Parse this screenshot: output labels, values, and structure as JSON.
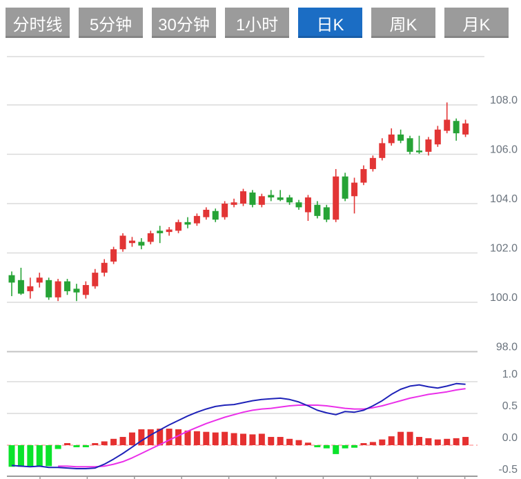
{
  "tabs": {
    "items": [
      {
        "label": "分时线",
        "active": false
      },
      {
        "label": "5分钟",
        "active": false
      },
      {
        "label": "30分钟",
        "active": false
      },
      {
        "label": "1小时",
        "active": false
      },
      {
        "label": "日K",
        "active": true
      },
      {
        "label": "周K",
        "active": false
      },
      {
        "label": "月K",
        "active": false
      }
    ]
  },
  "colors": {
    "tab_bg": "#9b9b9b",
    "tab_active_bg": "#1b6dc4",
    "tab_text": "#ffffff",
    "candle_up": "#e23535",
    "candle_down": "#26a336",
    "hist_up": "#e53030",
    "hist_down": "#0be32b",
    "dif_line": "#1e22b8",
    "dea_line": "#ea2fe9",
    "grid": "#dadada",
    "grid_dark": "#c3c3c3",
    "zero_line": "#ffa6a6",
    "axis": "#9a9a9a",
    "axis_label": "#6a737d"
  },
  "price_axis": {
    "tick_labels": [
      "108.0",
      "106.0",
      "104.0",
      "102.0",
      "100.0",
      "98.0"
    ],
    "tick_values": [
      108,
      106,
      104,
      102,
      100,
      98
    ]
  },
  "macd_axis": {
    "tick_labels": [
      "1.0",
      "0.5",
      "0.0",
      "-0.5"
    ],
    "tick_values": [
      1.0,
      0.5,
      0.0,
      -0.5
    ]
  },
  "chart_data": {
    "type": "candlestick_with_macd",
    "price_panel": {
      "ylim": [
        97.6,
        108.6
      ],
      "grid": true,
      "candles_ohlc_as_o_c_h_l": [
        [
          101.1,
          100.8,
          101.25,
          100.25
        ],
        [
          100.9,
          100.35,
          101.4,
          100.3
        ],
        [
          100.45,
          100.65,
          101.0,
          100.15
        ],
        [
          100.8,
          101.0,
          101.2,
          100.6
        ],
        [
          100.9,
          100.2,
          101.0,
          100.1
        ],
        [
          100.2,
          100.85,
          100.95,
          100.05
        ],
        [
          100.85,
          100.45,
          100.95,
          100.3
        ],
        [
          100.55,
          100.4,
          100.75,
          100.05
        ],
        [
          100.3,
          100.7,
          100.85,
          100.15
        ],
        [
          100.65,
          101.2,
          101.35,
          100.55
        ],
        [
          101.2,
          101.6,
          101.75,
          101.05
        ],
        [
          101.65,
          102.15,
          102.25,
          101.55
        ],
        [
          102.15,
          102.7,
          102.8,
          102.05
        ],
        [
          102.4,
          102.5,
          102.65,
          102.25
        ],
        [
          102.45,
          102.3,
          102.6,
          102.15
        ],
        [
          102.45,
          102.8,
          102.9,
          102.35
        ],
        [
          102.9,
          102.8,
          103.1,
          102.4
        ],
        [
          102.85,
          102.95,
          103.05,
          102.7
        ],
        [
          102.9,
          103.25,
          103.35,
          102.8
        ],
        [
          103.25,
          103.15,
          103.45,
          103.0
        ],
        [
          103.2,
          103.5,
          103.6,
          103.1
        ],
        [
          103.45,
          103.75,
          103.85,
          103.35
        ],
        [
          103.7,
          103.35,
          103.8,
          103.25
        ],
        [
          103.45,
          104.0,
          104.1,
          103.35
        ],
        [
          103.95,
          104.05,
          104.2,
          103.85
        ],
        [
          104.0,
          104.5,
          104.6,
          103.9
        ],
        [
          104.45,
          103.95,
          104.55,
          103.85
        ],
        [
          103.95,
          104.3,
          104.4,
          103.85
        ],
        [
          104.35,
          104.25,
          104.55,
          104.1
        ],
        [
          104.25,
          104.15,
          104.55,
          104.1
        ],
        [
          104.25,
          104.05,
          104.35,
          103.95
        ],
        [
          104.05,
          103.85,
          104.15,
          103.75
        ],
        [
          103.65,
          104.25,
          104.35,
          103.3
        ],
        [
          103.95,
          103.5,
          104.1,
          103.4
        ],
        [
          103.85,
          103.35,
          103.95,
          103.25
        ],
        [
          103.35,
          105.1,
          105.4,
          103.25
        ],
        [
          105.1,
          104.2,
          105.25,
          104.1
        ],
        [
          104.3,
          104.85,
          105.05,
          103.6
        ],
        [
          104.85,
          105.4,
          105.55,
          104.75
        ],
        [
          105.4,
          105.85,
          105.95,
          105.3
        ],
        [
          105.85,
          106.45,
          106.65,
          105.75
        ],
        [
          106.45,
          106.8,
          107.05,
          106.35
        ],
        [
          106.8,
          106.55,
          107.0,
          106.45
        ],
        [
          106.65,
          106.1,
          106.75,
          106.0
        ],
        [
          106.15,
          106.08,
          106.75,
          106.02
        ],
        [
          106.1,
          106.6,
          106.7,
          105.95
        ],
        [
          106.4,
          107.0,
          107.15,
          106.3
        ],
        [
          106.95,
          107.4,
          108.1,
          106.85
        ],
        [
          107.35,
          106.85,
          107.45,
          106.55
        ],
        [
          106.8,
          107.25,
          107.4,
          106.7
        ]
      ]
    },
    "macd_panel": {
      "ylim": [
        -0.55,
        1.05
      ],
      "series": [
        {
          "name": "DIF",
          "style": "line",
          "values": [
            -0.32,
            -0.33,
            -0.34,
            -0.33,
            -0.35,
            -0.35,
            -0.36,
            -0.37,
            -0.37,
            -0.36,
            -0.3,
            -0.22,
            -0.13,
            -0.03,
            0.07,
            0.16,
            0.24,
            0.32,
            0.39,
            0.46,
            0.52,
            0.57,
            0.61,
            0.63,
            0.64,
            0.67,
            0.7,
            0.72,
            0.73,
            0.74,
            0.72,
            0.68,
            0.62,
            0.55,
            0.51,
            0.48,
            0.53,
            0.52,
            0.55,
            0.62,
            0.7,
            0.8,
            0.88,
            0.93,
            0.95,
            0.92,
            0.9,
            0.93,
            0.97,
            0.96
          ]
        },
        {
          "name": "DEA",
          "style": "line",
          "values": [
            null,
            null,
            null,
            null,
            null,
            -0.33,
            -0.33,
            -0.34,
            -0.34,
            -0.34,
            -0.33,
            -0.3,
            -0.26,
            -0.2,
            -0.13,
            -0.06,
            0.01,
            0.08,
            0.15,
            0.22,
            0.28,
            0.34,
            0.39,
            0.44,
            0.48,
            0.52,
            0.55,
            0.57,
            0.58,
            0.6,
            0.62,
            0.63,
            0.63,
            0.63,
            0.62,
            0.6,
            0.58,
            0.57,
            0.57,
            0.59,
            0.62,
            0.66,
            0.7,
            0.74,
            0.77,
            0.8,
            0.82,
            0.84,
            0.87,
            0.89
          ]
        },
        {
          "name": "MACD",
          "style": "histogram",
          "values": [
            -0.34,
            -0.34,
            -0.33,
            -0.34,
            -0.33,
            -0.06,
            0.0,
            -0.02,
            -0.02,
            0.02,
            0.06,
            0.1,
            0.13,
            0.2,
            0.25,
            0.25,
            0.26,
            0.26,
            0.25,
            0.23,
            0.22,
            0.21,
            0.2,
            0.21,
            0.19,
            0.18,
            0.17,
            0.18,
            0.13,
            0.13,
            0.1,
            0.08,
            0.04,
            -0.03,
            -0.05,
            -0.14,
            -0.05,
            -0.04,
            0.0,
            0.05,
            0.09,
            0.14,
            0.21,
            0.21,
            0.13,
            0.11,
            0.09,
            0.1,
            0.11,
            0.13
          ]
        }
      ]
    }
  }
}
